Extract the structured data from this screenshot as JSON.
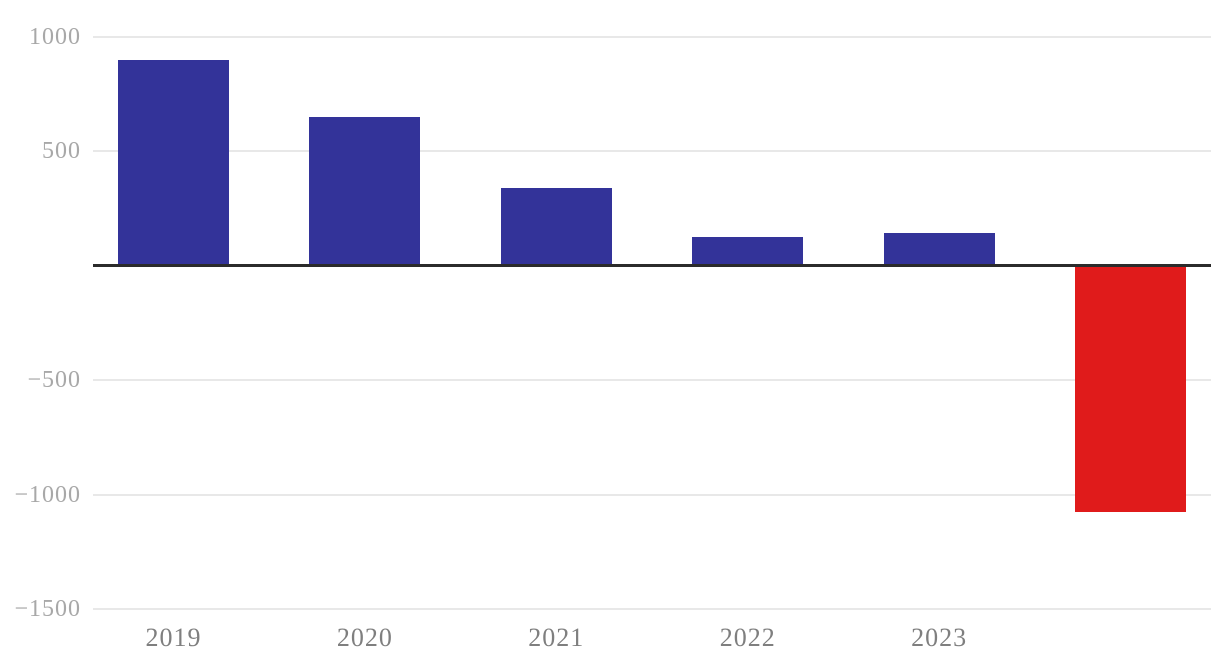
{
  "chart_data": {
    "type": "bar",
    "categories": [
      "2019",
      "2020",
      "2021",
      "2022",
      "2023",
      ""
    ],
    "values": [
      900,
      650,
      340,
      125,
      145,
      -1075
    ],
    "title": "",
    "xlabel": "",
    "ylabel": "",
    "ylim": [
      -1500,
      1000
    ],
    "yticks": [
      1000,
      500,
      0,
      -500,
      -1000,
      -1500
    ],
    "ytick_labels": [
      "1000",
      "500",
      "",
      "−500",
      "−1000",
      "−1500"
    ],
    "grid": true,
    "legend": false,
    "zero_tick_has_label": false,
    "colors": {
      "positive_bar": "#333399",
      "negative_bar": "#e01b1b",
      "gridline": "#e8e8e8",
      "zero_line": "#2b2b2b",
      "y_tick_label": "#a8a8a8",
      "x_tick_label": "#7f7f7f",
      "background": "#ffffff"
    }
  }
}
